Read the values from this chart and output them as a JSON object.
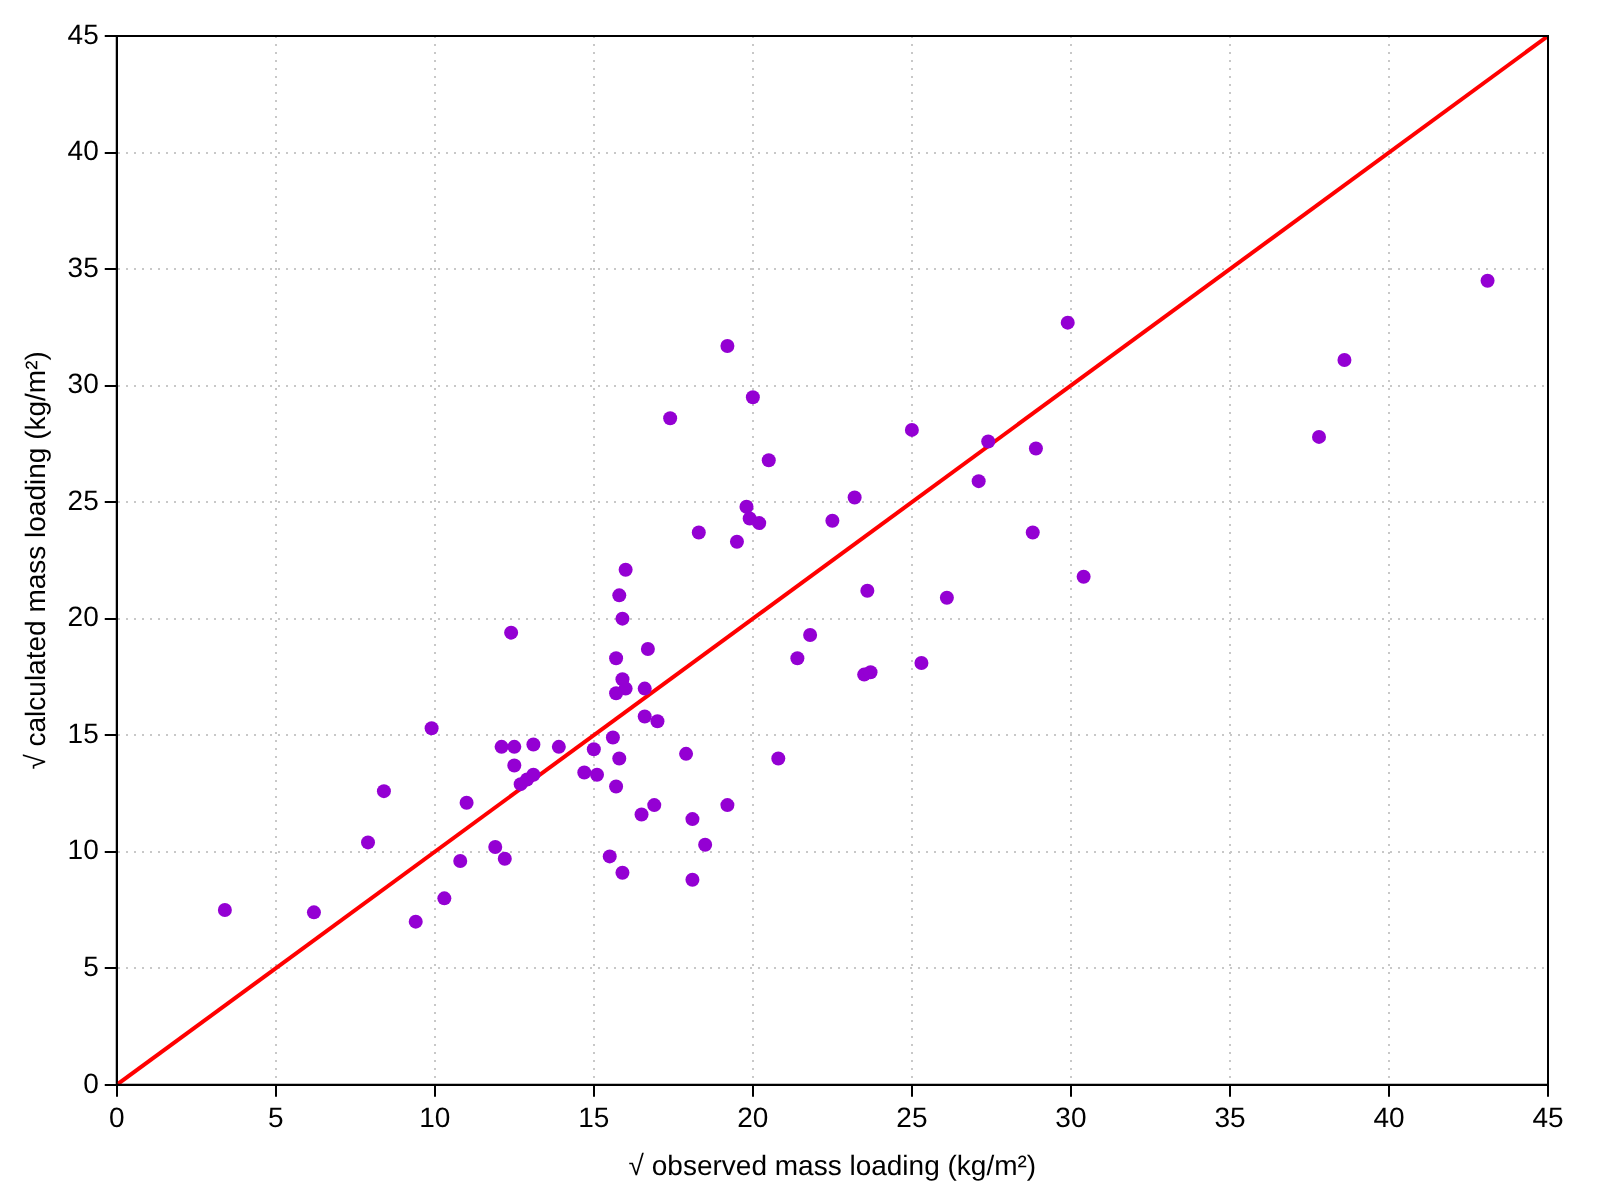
{
  "chart_data": {
    "type": "scatter",
    "xlabel": "√ observed mass loading (kg/m²)",
    "ylabel": "√ calculated mass loading (kg/m²)",
    "xlim": [
      0,
      45
    ],
    "ylim": [
      0,
      45
    ],
    "xticks": [
      0,
      5,
      10,
      15,
      20,
      25,
      30,
      35,
      40,
      45
    ],
    "yticks": [
      0,
      5,
      10,
      15,
      20,
      25,
      30,
      35,
      40,
      45
    ],
    "grid": true,
    "legend": false,
    "marker": "circle",
    "series": [
      {
        "color": "#9400d3",
        "x": [
          3.4,
          6.2,
          7.9,
          8.4,
          9.4,
          9.9,
          10.3,
          10.8,
          11.0,
          11.9,
          12.1,
          12.2,
          12.4,
          12.5,
          12.5,
          12.7,
          12.9,
          13.1,
          13.1,
          13.9,
          14.7,
          15.0,
          15.1,
          15.5,
          15.6,
          15.7,
          15.7,
          15.7,
          15.8,
          15.8,
          15.9,
          15.9,
          15.9,
          16.0,
          16.0,
          16.5,
          16.6,
          16.6,
          16.7,
          16.9,
          17.0,
          17.4,
          17.9,
          18.1,
          18.1,
          18.3,
          18.5,
          19.2,
          19.2,
          19.5,
          19.8,
          19.9,
          20.0,
          20.2,
          20.5,
          20.8,
          21.4,
          21.8,
          22.5,
          23.2,
          23.5,
          23.6,
          23.7,
          25.0,
          25.3,
          26.1,
          27.1,
          27.4,
          28.8,
          28.9,
          29.9,
          30.4,
          37.8,
          38.6,
          43.1
        ],
        "values": [
          7.5,
          7.4,
          10.4,
          12.6,
          7.0,
          15.3,
          8.0,
          9.6,
          12.1,
          10.2,
          14.5,
          9.7,
          19.4,
          14.5,
          13.7,
          12.9,
          13.1,
          14.6,
          13.3,
          14.5,
          13.4,
          14.4,
          13.3,
          9.8,
          14.9,
          18.3,
          16.8,
          12.8,
          14.0,
          21.0,
          9.1,
          17.4,
          20.0,
          22.1,
          17.0,
          11.6,
          15.8,
          17.0,
          18.7,
          12.0,
          15.6,
          28.6,
          14.2,
          8.8,
          11.4,
          23.7,
          10.3,
          12.0,
          31.7,
          23.3,
          24.8,
          24.3,
          29.5,
          24.1,
          26.8,
          14.0,
          18.3,
          19.3,
          24.2,
          25.2,
          17.6,
          21.2,
          17.7,
          28.1,
          18.1,
          20.9,
          25.9,
          27.6,
          23.7,
          27.3,
          32.7,
          21.8,
          27.8,
          31.1,
          34.5
        ]
      },
      {
        "type": "line",
        "color": "#ff0000",
        "marker": "none",
        "x": [
          0,
          45
        ],
        "values": [
          0,
          45
        ]
      }
    ]
  }
}
